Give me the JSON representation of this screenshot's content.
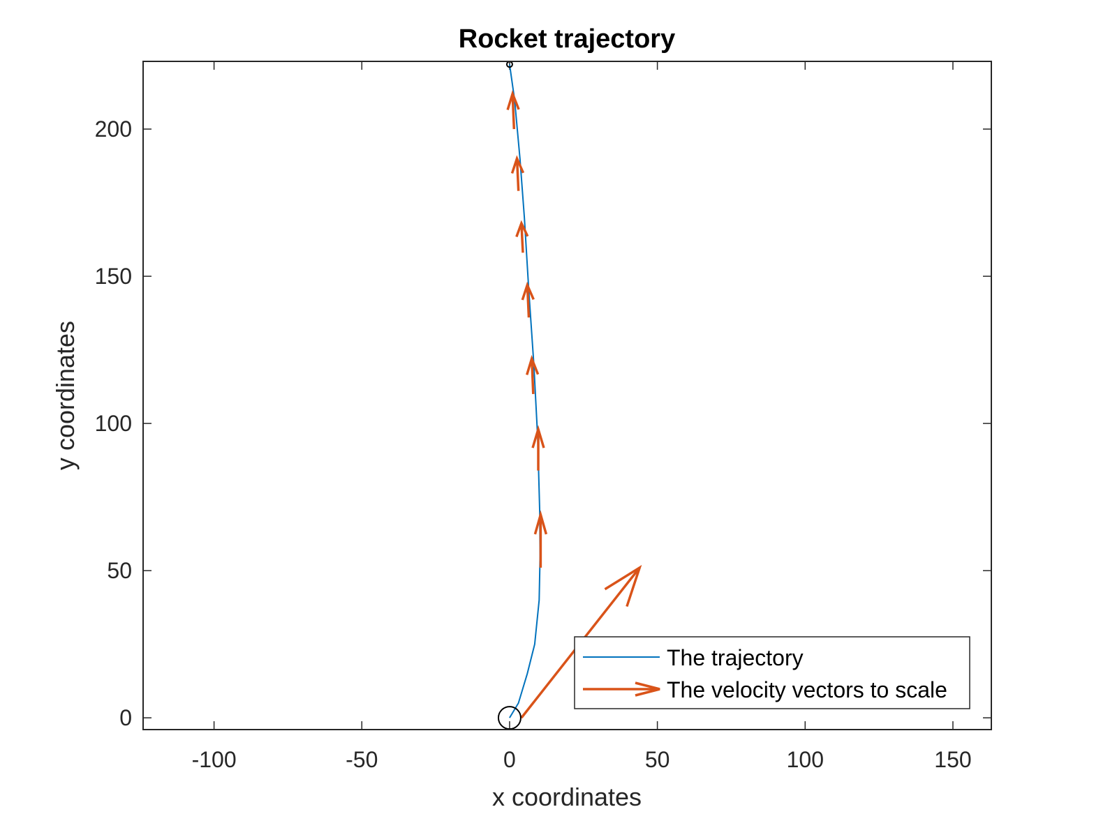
{
  "chart_data": {
    "type": "line",
    "title": "Rocket trajectory",
    "xlabel": "x coordinates",
    "ylabel": "y coordinates",
    "xlim": [
      -124,
      163
    ],
    "ylim": [
      -4,
      223
    ],
    "xticks": [
      -100,
      -50,
      0,
      50,
      100,
      150
    ],
    "yticks": [
      0,
      50,
      100,
      150,
      200
    ],
    "xtick_labels": [
      "-100",
      "-50",
      "0",
      "50",
      "100",
      "150"
    ],
    "ytick_labels": [
      "0",
      "50",
      "100",
      "150",
      "200"
    ],
    "grid": false,
    "legend_position": "bottom-right",
    "series": [
      {
        "name": "The trajectory",
        "kind": "line",
        "color": "#0072BD",
        "x": [
          0,
          3,
          6,
          8.5,
          10,
          10.3,
          10.2,
          9.5,
          8.2,
          6.5,
          5,
          3.5,
          1.7,
          0
        ],
        "y": [
          0,
          5,
          15,
          25,
          40,
          55,
          70,
          95,
          120,
          145,
          170,
          190,
          210,
          222
        ]
      },
      {
        "name": "The velocity vectors to scale",
        "kind": "quiver",
        "color": "#D95319",
        "vectors": [
          {
            "x": 4,
            "y": 0,
            "u": 40,
            "v": 51
          },
          {
            "x": 10.5,
            "y": 51,
            "u": 0,
            "v": 18
          },
          {
            "x": 9.7,
            "y": 84,
            "u": 0,
            "v": 14
          },
          {
            "x": 8,
            "y": 110,
            "u": -0.5,
            "v": 12
          },
          {
            "x": 6.5,
            "y": 136,
            "u": -0.5,
            "v": 11
          },
          {
            "x": 4.5,
            "y": 158,
            "u": -0.5,
            "v": 10
          },
          {
            "x": 3,
            "y": 179,
            "u": -0.5,
            "v": 11
          },
          {
            "x": 1.5,
            "y": 200,
            "u": -0.5,
            "v": 12
          }
        ]
      }
    ],
    "markers": [
      {
        "name": "launch-point",
        "x": 0,
        "y": 0,
        "shape": "circle",
        "size": "large"
      },
      {
        "name": "apex-point",
        "x": 0,
        "y": 222,
        "shape": "circle",
        "size": "small"
      }
    ]
  },
  "colors": {
    "trajectory": "#0072BD",
    "velocity": "#D95319",
    "axes": "#262626"
  }
}
